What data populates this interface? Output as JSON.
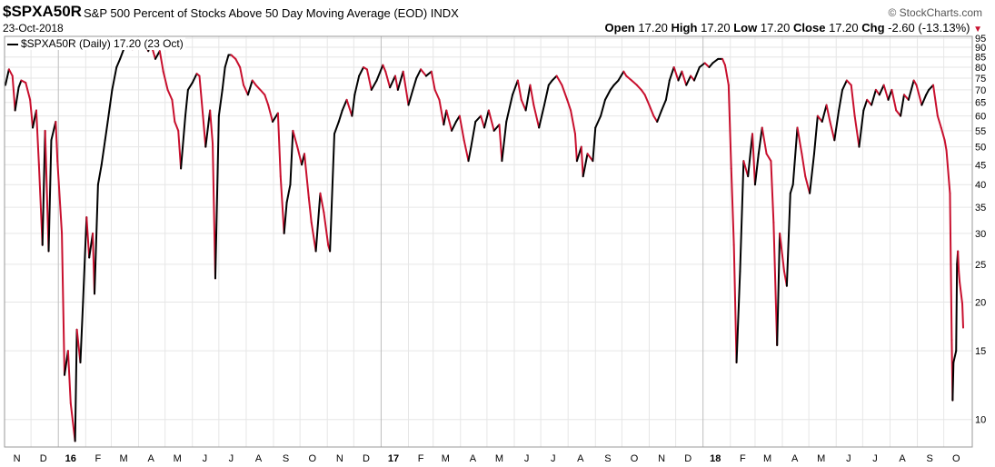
{
  "header": {
    "symbol": "$SPXA50R",
    "description": "S&P 500 Percent of Stocks Above 50 Day Moving Average (EOD)",
    "exchange": "INDX",
    "brand": "© StockCharts.com",
    "date": "23-Oct-2018",
    "open_label": "Open",
    "open": "17.20",
    "high_label": "High",
    "high": "17.20",
    "low_label": "Low",
    "low": "17.20",
    "close_label": "Close",
    "close": "17.20",
    "chg_label": "Chg",
    "chg": "-2.60 (-13.13%)"
  },
  "legend": "$SPXA50R (Daily) 17.20 (23 Oct)",
  "colors": {
    "up": "#000000",
    "down": "#c8102e",
    "grid": "#e6e6e6",
    "frame": "#999999"
  },
  "chart_data": {
    "type": "line",
    "y_scale": "log",
    "ylim": [
      8.5,
      96
    ],
    "y_ticks": [
      95,
      90,
      85,
      80,
      75,
      70,
      65,
      60,
      55,
      50,
      45,
      40,
      35,
      30,
      25,
      20,
      15,
      10
    ],
    "x_labels": [
      "N",
      "D",
      "16",
      "F",
      "M",
      "A",
      "M",
      "J",
      "J",
      "A",
      "S",
      "O",
      "N",
      "D",
      "17",
      "F",
      "M",
      "A",
      "M",
      "J",
      "J",
      "A",
      "S",
      "O",
      "N",
      "D",
      "18",
      "F",
      "M",
      "A",
      "M",
      "J",
      "J",
      "A",
      "S",
      "O"
    ],
    "bold_labels": [
      "16",
      "17",
      "18"
    ],
    "x_range": [
      "2015-11-01",
      "2018-10-23"
    ],
    "series": [
      {
        "values": [
          [
            "2015-11-02",
            72
          ],
          [
            "2015-11-06",
            79
          ],
          [
            "2015-11-10",
            76
          ],
          [
            "2015-11-13",
            62
          ],
          [
            "2015-11-17",
            71
          ],
          [
            "2015-11-20",
            74
          ],
          [
            "2015-11-25",
            73
          ],
          [
            "2015-11-30",
            66
          ],
          [
            "2015-12-03",
            56
          ],
          [
            "2015-12-07",
            62
          ],
          [
            "2015-12-10",
            45
          ],
          [
            "2015-12-14",
            28
          ],
          [
            "2015-12-17",
            55
          ],
          [
            "2015-12-21",
            27
          ],
          [
            "2015-12-24",
            52
          ],
          [
            "2015-12-29",
            58
          ],
          [
            "2015-12-31",
            46
          ],
          [
            "2016-01-05",
            30
          ],
          [
            "2016-01-08",
            13
          ],
          [
            "2016-01-12",
            15
          ],
          [
            "2016-01-15",
            11
          ],
          [
            "2016-01-20",
            8.8
          ],
          [
            "2016-01-22",
            17
          ],
          [
            "2016-01-26",
            14
          ],
          [
            "2016-01-29",
            20
          ],
          [
            "2016-02-02",
            33
          ],
          [
            "2016-02-05",
            26
          ],
          [
            "2016-02-09",
            30
          ],
          [
            "2016-02-11",
            21
          ],
          [
            "2016-02-15",
            40
          ],
          [
            "2016-02-19",
            45
          ],
          [
            "2016-02-23",
            52
          ],
          [
            "2016-02-26",
            58
          ],
          [
            "2016-03-02",
            70
          ],
          [
            "2016-03-07",
            80
          ],
          [
            "2016-03-11",
            84
          ],
          [
            "2016-03-16",
            90
          ],
          [
            "2016-03-21",
            92
          ],
          [
            "2016-03-25",
            89
          ],
          [
            "2016-03-30",
            92
          ],
          [
            "2016-04-04",
            90
          ],
          [
            "2016-04-08",
            92
          ],
          [
            "2016-04-12",
            88
          ],
          [
            "2016-04-15",
            92
          ],
          [
            "2016-04-20",
            84
          ],
          [
            "2016-04-25",
            88
          ],
          [
            "2016-04-29",
            78
          ],
          [
            "2016-05-04",
            70
          ],
          [
            "2016-05-09",
            66
          ],
          [
            "2016-05-12",
            58
          ],
          [
            "2016-05-16",
            55
          ],
          [
            "2016-05-19",
            44
          ],
          [
            "2016-05-24",
            60
          ],
          [
            "2016-05-27",
            70
          ],
          [
            "2016-06-01",
            73
          ],
          [
            "2016-06-06",
            77
          ],
          [
            "2016-06-09",
            76
          ],
          [
            "2016-06-13",
            60
          ],
          [
            "2016-06-16",
            50
          ],
          [
            "2016-06-21",
            62
          ],
          [
            "2016-06-24",
            51
          ],
          [
            "2016-06-27",
            23
          ],
          [
            "2016-07-01",
            60
          ],
          [
            "2016-07-05",
            70
          ],
          [
            "2016-07-08",
            80
          ],
          [
            "2016-07-12",
            86
          ],
          [
            "2016-07-15",
            86
          ],
          [
            "2016-07-20",
            84
          ],
          [
            "2016-07-25",
            80
          ],
          [
            "2016-07-29",
            72
          ],
          [
            "2016-08-03",
            68
          ],
          [
            "2016-08-08",
            74
          ],
          [
            "2016-08-12",
            72
          ],
          [
            "2016-08-17",
            70
          ],
          [
            "2016-08-22",
            68
          ],
          [
            "2016-08-26",
            64
          ],
          [
            "2016-08-31",
            58
          ],
          [
            "2016-09-06",
            61
          ],
          [
            "2016-09-09",
            42
          ],
          [
            "2016-09-13",
            30
          ],
          [
            "2016-09-16",
            36
          ],
          [
            "2016-09-20",
            40
          ],
          [
            "2016-09-23",
            55
          ],
          [
            "2016-09-28",
            50
          ],
          [
            "2016-10-03",
            45
          ],
          [
            "2016-10-06",
            48
          ],
          [
            "2016-10-11",
            37
          ],
          [
            "2016-10-14",
            32
          ],
          [
            "2016-10-19",
            27
          ],
          [
            "2016-10-24",
            38
          ],
          [
            "2016-10-28",
            34
          ],
          [
            "2016-11-02",
            28
          ],
          [
            "2016-11-04",
            27
          ],
          [
            "2016-11-09",
            54
          ],
          [
            "2016-11-14",
            58
          ],
          [
            "2016-11-18",
            62
          ],
          [
            "2016-11-23",
            66
          ],
          [
            "2016-11-29",
            60
          ],
          [
            "2016-12-02",
            68
          ],
          [
            "2016-12-07",
            76
          ],
          [
            "2016-12-12",
            80
          ],
          [
            "2016-12-16",
            79
          ],
          [
            "2016-12-21",
            70
          ],
          [
            "2016-12-27",
            74
          ],
          [
            "2017-01-03",
            81
          ],
          [
            "2017-01-06",
            78
          ],
          [
            "2017-01-11",
            71
          ],
          [
            "2017-01-17",
            76
          ],
          [
            "2017-01-20",
            70
          ],
          [
            "2017-01-26",
            78
          ],
          [
            "2017-02-01",
            64
          ],
          [
            "2017-02-06",
            70
          ],
          [
            "2017-02-10",
            75
          ],
          [
            "2017-02-15",
            79
          ],
          [
            "2017-02-21",
            76
          ],
          [
            "2017-02-27",
            78
          ],
          [
            "2017-03-03",
            70
          ],
          [
            "2017-03-08",
            66
          ],
          [
            "2017-03-13",
            57
          ],
          [
            "2017-03-16",
            62
          ],
          [
            "2017-03-22",
            55
          ],
          [
            "2017-03-27",
            58
          ],
          [
            "2017-03-31",
            60
          ],
          [
            "2017-04-05",
            52
          ],
          [
            "2017-04-10",
            46
          ],
          [
            "2017-04-13",
            50
          ],
          [
            "2017-04-18",
            58
          ],
          [
            "2017-04-24",
            60
          ],
          [
            "2017-04-28",
            56
          ],
          [
            "2017-05-03",
            62
          ],
          [
            "2017-05-09",
            55
          ],
          [
            "2017-05-15",
            57
          ],
          [
            "2017-05-18",
            46
          ],
          [
            "2017-05-23",
            58
          ],
          [
            "2017-05-30",
            68
          ],
          [
            "2017-06-05",
            74
          ],
          [
            "2017-06-09",
            66
          ],
          [
            "2017-06-14",
            62
          ],
          [
            "2017-06-19",
            72
          ],
          [
            "2017-06-23",
            64
          ],
          [
            "2017-06-29",
            56
          ],
          [
            "2017-07-05",
            64
          ],
          [
            "2017-07-10",
            72
          ],
          [
            "2017-07-14",
            74
          ],
          [
            "2017-07-19",
            76
          ],
          [
            "2017-07-25",
            72
          ],
          [
            "2017-07-31",
            66
          ],
          [
            "2017-08-04",
            62
          ],
          [
            "2017-08-09",
            54
          ],
          [
            "2017-08-11",
            46
          ],
          [
            "2017-08-16",
            50
          ],
          [
            "2017-08-18",
            42
          ],
          [
            "2017-08-23",
            48
          ],
          [
            "2017-08-29",
            46
          ],
          [
            "2017-09-01",
            56
          ],
          [
            "2017-09-07",
            60
          ],
          [
            "2017-09-12",
            66
          ],
          [
            "2017-09-18",
            70
          ],
          [
            "2017-09-22",
            72
          ],
          [
            "2017-09-27",
            74
          ],
          [
            "2017-10-03",
            78
          ],
          [
            "2017-10-06",
            76
          ],
          [
            "2017-10-12",
            74
          ],
          [
            "2017-10-18",
            72
          ],
          [
            "2017-10-23",
            70
          ],
          [
            "2017-10-27",
            68
          ],
          [
            "2017-11-01",
            64
          ],
          [
            "2017-11-06",
            60
          ],
          [
            "2017-11-10",
            58
          ],
          [
            "2017-11-15",
            62
          ],
          [
            "2017-11-20",
            66
          ],
          [
            "2017-11-24",
            74
          ],
          [
            "2017-11-29",
            80
          ],
          [
            "2017-12-04",
            74
          ],
          [
            "2017-12-08",
            78
          ],
          [
            "2017-12-13",
            72
          ],
          [
            "2017-12-18",
            76
          ],
          [
            "2017-12-22",
            74
          ],
          [
            "2017-12-28",
            80
          ],
          [
            "2018-01-03",
            82
          ],
          [
            "2018-01-08",
            80
          ],
          [
            "2018-01-12",
            82
          ],
          [
            "2018-01-18",
            84
          ],
          [
            "2018-01-23",
            84
          ],
          [
            "2018-01-26",
            81
          ],
          [
            "2018-01-30",
            72
          ],
          [
            "2018-02-02",
            44
          ],
          [
            "2018-02-05",
            28
          ],
          [
            "2018-02-08",
            14
          ],
          [
            "2018-02-12",
            24
          ],
          [
            "2018-02-16",
            46
          ],
          [
            "2018-02-21",
            42
          ],
          [
            "2018-02-26",
            54
          ],
          [
            "2018-03-01",
            40
          ],
          [
            "2018-03-05",
            48
          ],
          [
            "2018-03-09",
            56
          ],
          [
            "2018-03-14",
            48
          ],
          [
            "2018-03-19",
            46
          ],
          [
            "2018-03-22",
            32
          ],
          [
            "2018-03-26",
            15.5
          ],
          [
            "2018-03-29",
            30
          ],
          [
            "2018-04-03",
            24
          ],
          [
            "2018-04-06",
            22
          ],
          [
            "2018-04-10",
            38
          ],
          [
            "2018-04-13",
            40
          ],
          [
            "2018-04-18",
            56
          ],
          [
            "2018-04-23",
            48
          ],
          [
            "2018-04-27",
            42
          ],
          [
            "2018-05-02",
            38
          ],
          [
            "2018-05-07",
            48
          ],
          [
            "2018-05-11",
            60
          ],
          [
            "2018-05-16",
            58
          ],
          [
            "2018-05-21",
            64
          ],
          [
            "2018-05-25",
            58
          ],
          [
            "2018-05-30",
            52
          ],
          [
            "2018-06-04",
            62
          ],
          [
            "2018-06-08",
            70
          ],
          [
            "2018-06-13",
            74
          ],
          [
            "2018-06-18",
            72
          ],
          [
            "2018-06-22",
            60
          ],
          [
            "2018-06-27",
            50
          ],
          [
            "2018-07-02",
            62
          ],
          [
            "2018-07-06",
            66
          ],
          [
            "2018-07-11",
            64
          ],
          [
            "2018-07-16",
            70
          ],
          [
            "2018-07-20",
            68
          ],
          [
            "2018-07-25",
            72
          ],
          [
            "2018-07-30",
            66
          ],
          [
            "2018-08-03",
            70
          ],
          [
            "2018-08-08",
            62
          ],
          [
            "2018-08-13",
            60
          ],
          [
            "2018-08-17",
            68
          ],
          [
            "2018-08-22",
            66
          ],
          [
            "2018-08-28",
            74
          ],
          [
            "2018-08-31",
            72
          ],
          [
            "2018-09-06",
            64
          ],
          [
            "2018-09-11",
            68
          ],
          [
            "2018-09-14",
            70
          ],
          [
            "2018-09-19",
            72
          ],
          [
            "2018-09-24",
            60
          ],
          [
            "2018-09-28",
            56
          ],
          [
            "2018-10-02",
            52
          ],
          [
            "2018-10-04",
            49
          ],
          [
            "2018-10-08",
            38
          ],
          [
            "2018-10-10",
            16
          ],
          [
            "2018-10-11",
            11.2
          ],
          [
            "2018-10-12",
            14
          ],
          [
            "2018-10-15",
            15
          ],
          [
            "2018-10-16",
            25
          ],
          [
            "2018-10-17",
            27
          ],
          [
            "2018-10-18",
            24
          ],
          [
            "2018-10-19",
            22.5
          ],
          [
            "2018-10-22",
            19.8
          ],
          [
            "2018-10-23",
            17.2
          ]
        ]
      }
    ]
  }
}
